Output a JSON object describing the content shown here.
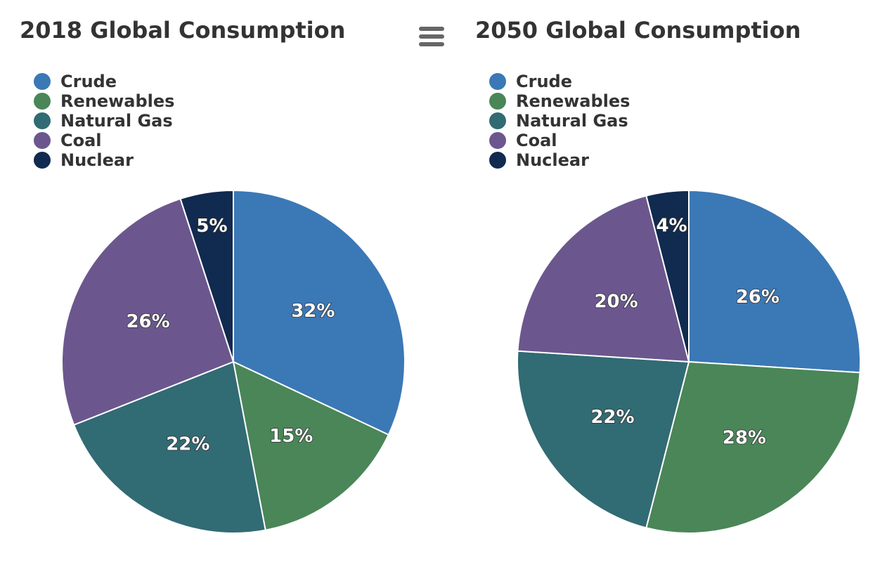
{
  "colors": {
    "Crude": "#3b78b6",
    "Renewables": "#4a8658",
    "Natural Gas": "#316b74",
    "Coal": "#6b578e",
    "Nuclear": "#112a4f"
  },
  "menu": {
    "icon": "hamburger-menu-icon"
  },
  "chart_data": [
    {
      "type": "pie",
      "title": "2018 Global Consumption",
      "legend_position": "top-left",
      "categories": [
        "Crude",
        "Renewables",
        "Natural Gas",
        "Coal",
        "Nuclear"
      ],
      "values": [
        32,
        15,
        22,
        26,
        5
      ],
      "labels": [
        "32%",
        "15%",
        "22%",
        "26%",
        "5%"
      ]
    },
    {
      "type": "pie",
      "title": "2050 Global Consumption",
      "legend_position": "top-left",
      "categories": [
        "Crude",
        "Renewables",
        "Natural Gas",
        "Coal",
        "Nuclear"
      ],
      "values": [
        26,
        28,
        22,
        20,
        4
      ],
      "labels": [
        "26%",
        "28%",
        "22%",
        "20%",
        "4%"
      ]
    }
  ]
}
